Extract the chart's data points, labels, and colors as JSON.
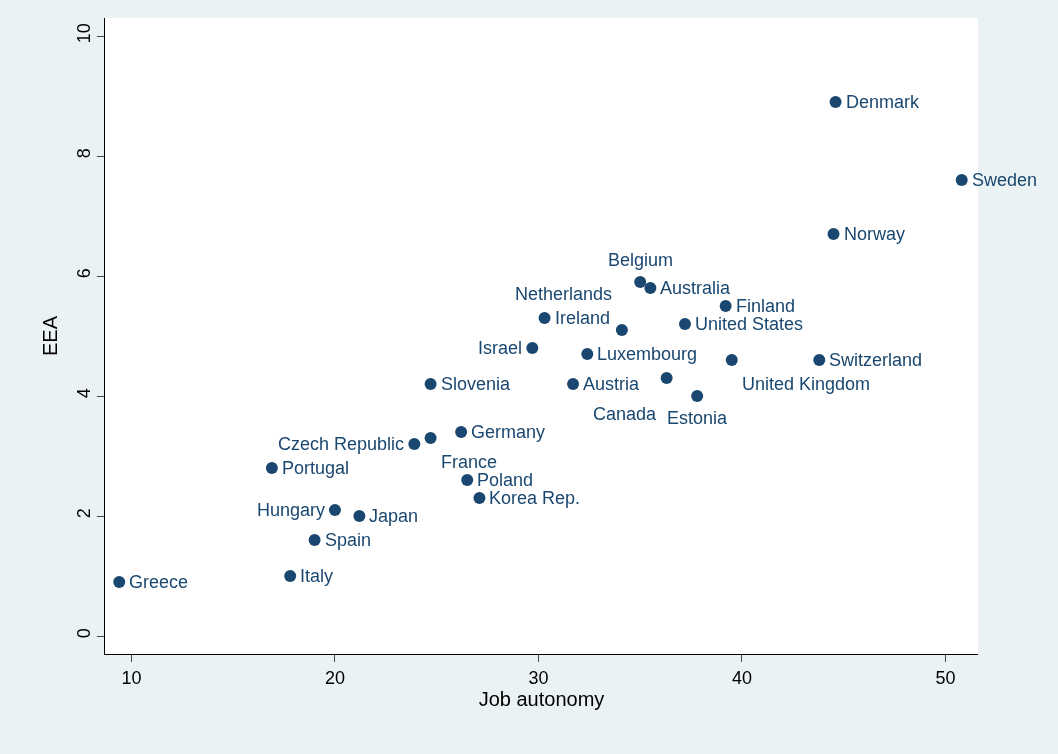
{
  "chart_data": {
    "type": "scatter",
    "xlabel": "Job autonomy",
    "ylabel": "EEA",
    "x": [
      9.4,
      17.8,
      19.0,
      20.0,
      21.2,
      16.9,
      23.9,
      24.7,
      26.2,
      24.7,
      26.5,
      27.1,
      29.7,
      30.3,
      31.7,
      32.4,
      34.1,
      35.0,
      35.5,
      37.2,
      36.3,
      37.8,
      39.2,
      39.5,
      43.8,
      44.5,
      44.6,
      50.8
    ],
    "series": [
      {
        "color": "#1a476f",
        "values": [
          0.9,
          1.0,
          1.6,
          2.1,
          2.0,
          2.8,
          3.2,
          3.3,
          3.4,
          4.2,
          2.6,
          2.3,
          4.8,
          5.3,
          4.2,
          4.7,
          5.1,
          5.9,
          5.8,
          5.2,
          4.3,
          4.0,
          5.5,
          4.6,
          4.6,
          6.7,
          8.9,
          7.6
        ]
      }
    ],
    "annotations": [
      {
        "text": "Greece",
        "x": 9.4,
        "y": 0.9
      },
      {
        "text": "Italy",
        "x": 17.8,
        "y": 1.0
      },
      {
        "text": "Spain",
        "x": 19.0,
        "y": 1.6
      },
      {
        "text": "Hungary",
        "x": 20.0,
        "y": 2.1
      },
      {
        "text": "Japan",
        "x": 21.2,
        "y": 2.0
      },
      {
        "text": "Portugal",
        "x": 16.9,
        "y": 2.8
      },
      {
        "text": "Czech Republic",
        "x": 23.9,
        "y": 3.2
      },
      {
        "text": "France",
        "x": 24.7,
        "y": 3.3
      },
      {
        "text": "Germany",
        "x": 26.2,
        "y": 3.4
      },
      {
        "text": "Slovenia",
        "x": 24.7,
        "y": 4.2
      },
      {
        "text": "Poland",
        "x": 26.5,
        "y": 2.6
      },
      {
        "text": "Korea Rep.",
        "x": 27.1,
        "y": 2.3
      },
      {
        "text": "Israel",
        "x": 29.7,
        "y": 4.8
      },
      {
        "text": "Ireland",
        "x": 30.3,
        "y": 5.3
      },
      {
        "text": "Austria",
        "x": 31.7,
        "y": 4.2
      },
      {
        "text": "Luxembourg",
        "x": 32.4,
        "y": 4.7
      },
      {
        "text": "Netherlands",
        "x": 34.1,
        "y": 5.1
      },
      {
        "text": "Belgium",
        "x": 35.0,
        "y": 5.9
      },
      {
        "text": "Australia",
        "x": 35.5,
        "y": 5.8
      },
      {
        "text": "United States",
        "x": 37.2,
        "y": 5.2
      },
      {
        "text": "Canada",
        "x": 36.3,
        "y": 4.3
      },
      {
        "text": "Estonia",
        "x": 37.8,
        "y": 4.0
      },
      {
        "text": "Finland",
        "x": 39.2,
        "y": 5.5
      },
      {
        "text": "United Kingdom",
        "x": 39.5,
        "y": 4.6
      },
      {
        "text": "Switzerland",
        "x": 43.8,
        "y": 4.6
      },
      {
        "text": "Norway",
        "x": 44.5,
        "y": 6.7
      },
      {
        "text": "Denmark",
        "x": 44.6,
        "y": 8.9
      },
      {
        "text": "Sweden",
        "x": 50.8,
        "y": 7.6
      }
    ],
    "xlim": [
      8.7,
      51.6
    ],
    "xticks": [
      10,
      20,
      30,
      40,
      50
    ],
    "ylim": [
      -0.3,
      10.3
    ],
    "yticks": [
      0,
      2,
      4,
      6,
      8,
      10
    ],
    "marker": "circle",
    "grid": false
  }
}
